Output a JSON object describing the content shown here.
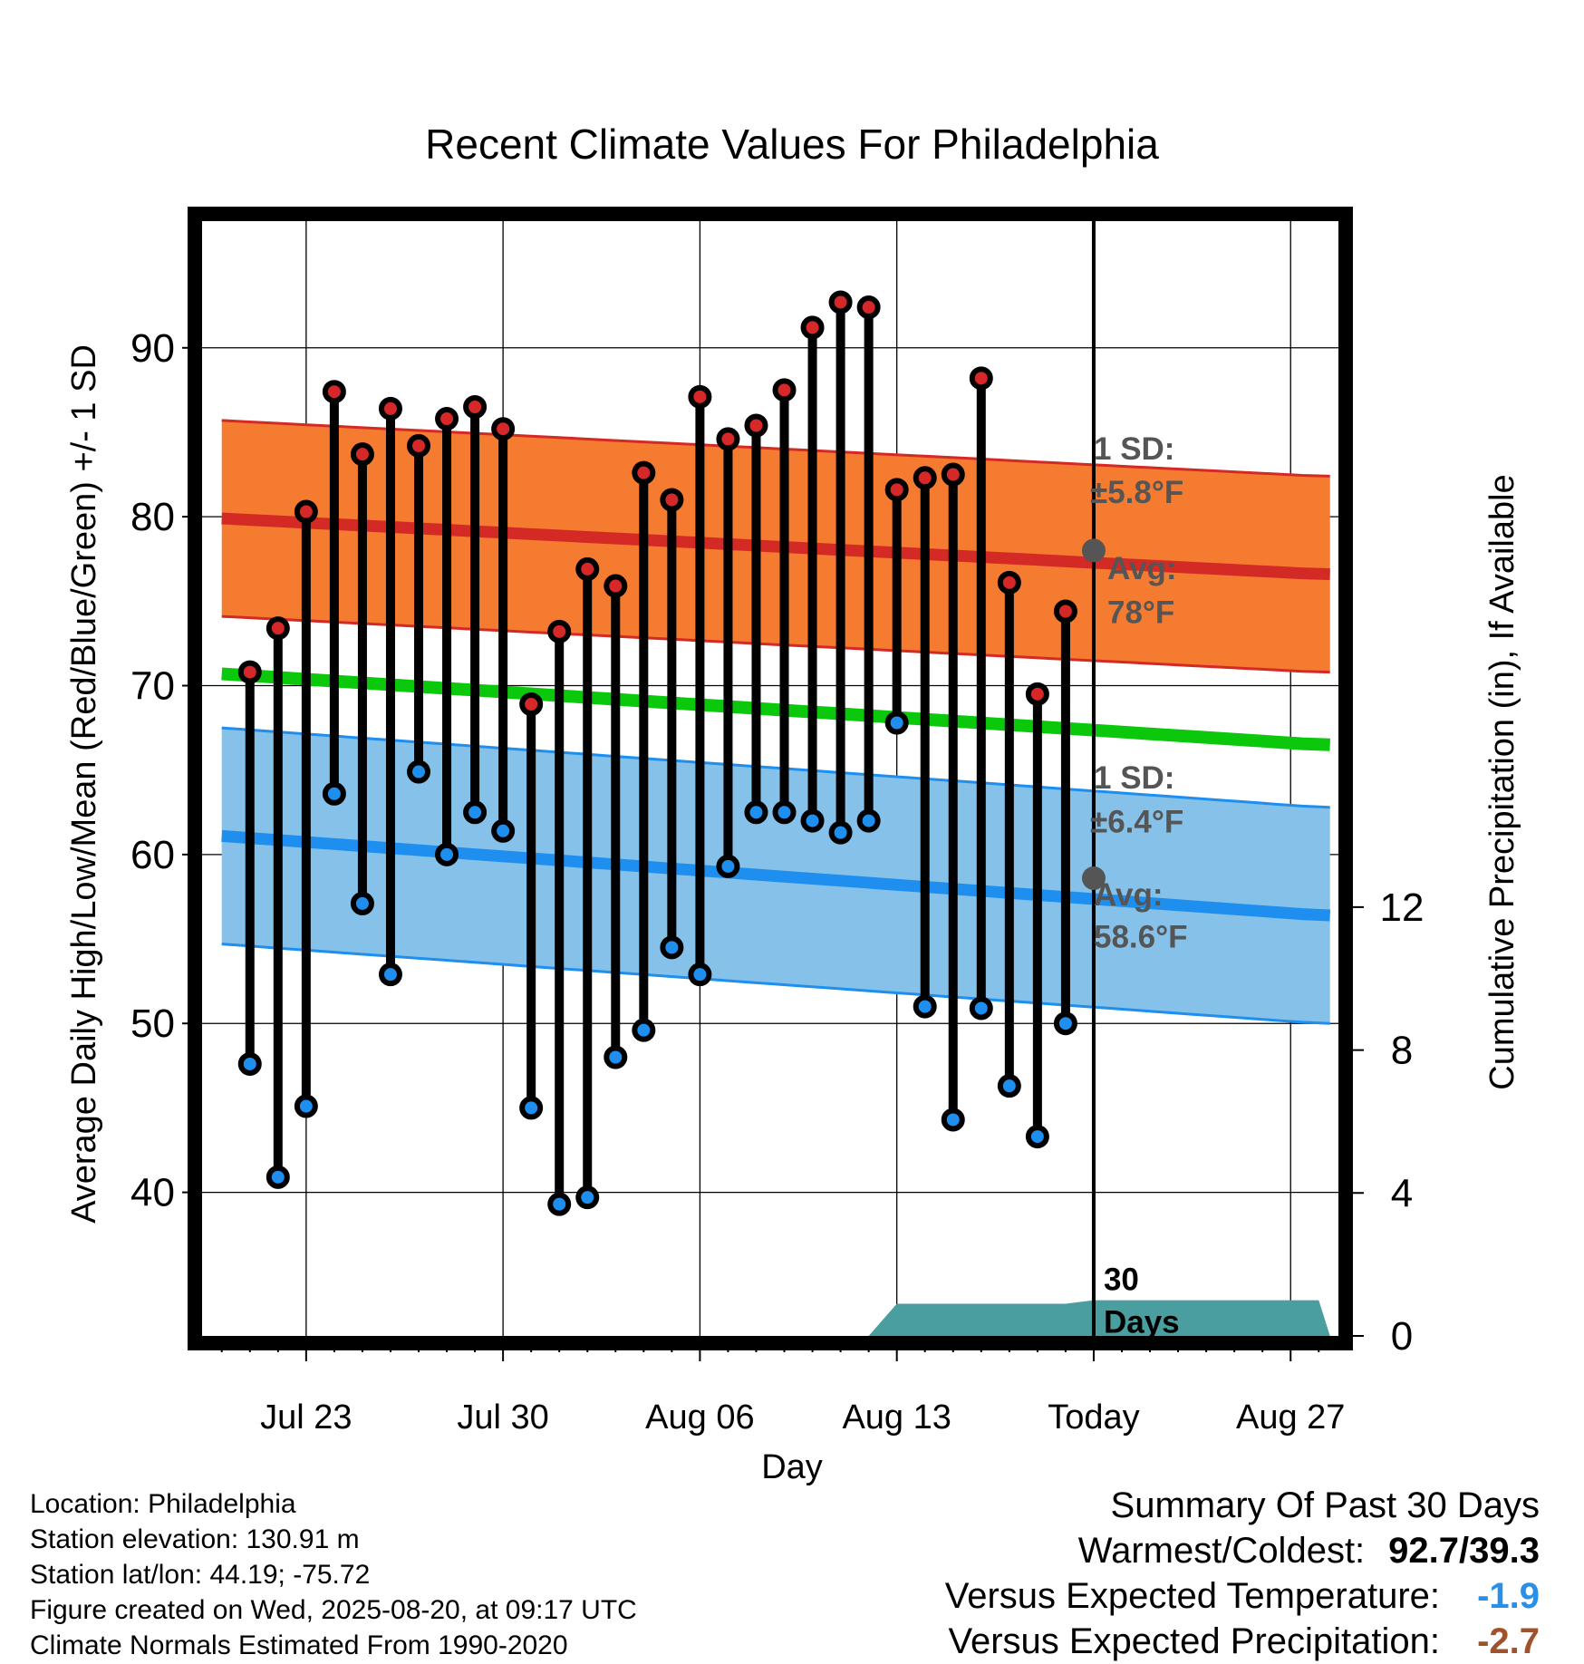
{
  "chart_data": {
    "type": "line",
    "title": "Recent Climate Values For Philadelphia",
    "xlabel": "Day",
    "ylabel": "Average Daily High/Low/Mean (Red/Blue/Green) +/- 1 SD",
    "y2label": "Cumulative Precipitation (in), If Available",
    "x_ticks": [
      "Jul 23",
      "Jul 30",
      "Aug 06",
      "Aug 13",
      "Today",
      "Aug 27"
    ],
    "x_tick_days": [
      3,
      10,
      17,
      24,
      31,
      38
    ],
    "xlim_days": [
      -0.7,
      39.7
    ],
    "x_day0": "2025-07-20",
    "ylim": [
      31.5,
      97.5
    ],
    "y_ticks": [
      40,
      50,
      60,
      70,
      80,
      90
    ],
    "y2_ticks": [
      0,
      4,
      8,
      12
    ],
    "y2lim": [
      0,
      31.2
    ],
    "grid": true,
    "today_day": 31,
    "today_label": "30 Days",
    "observed": {
      "days": [
        1,
        2,
        3,
        4,
        5,
        6,
        7,
        8,
        9,
        10,
        11,
        12,
        13,
        14,
        15,
        16,
        17,
        18,
        19,
        20,
        21,
        22,
        23,
        24,
        25,
        26,
        27,
        28,
        29,
        30
      ],
      "highs": [
        70.8,
        73.4,
        80.3,
        87.4,
        83.7,
        86.4,
        84.2,
        85.8,
        86.5,
        85.2,
        68.9,
        73.2,
        76.9,
        75.9,
        82.6,
        81.0,
        87.1,
        84.6,
        85.4,
        87.5,
        91.2,
        92.7,
        92.4,
        81.6,
        82.3,
        82.5,
        88.2,
        76.1,
        69.5,
        74.4
      ],
      "lows": [
        47.6,
        40.9,
        45.1,
        63.6,
        57.1,
        52.9,
        64.9,
        60.0,
        62.5,
        61.4,
        45.0,
        39.3,
        39.7,
        48.0,
        49.6,
        54.5,
        52.9,
        59.3,
        62.5,
        62.5,
        62.0,
        61.3,
        62.0,
        67.8,
        51.0,
        44.3,
        50.9,
        46.3,
        43.3,
        50.0
      ]
    },
    "normals": {
      "days": [
        0,
        39
      ],
      "high_avg": [
        79.9,
        76.6
      ],
      "high_sd": 5.8,
      "mean_avg": [
        70.7,
        66.5
      ],
      "low_avg": [
        61.1,
        56.4
      ],
      "low_sd": 6.4
    },
    "precipitation": {
      "days": [
        23,
        24,
        30,
        31,
        39
      ],
      "values": [
        0,
        0.9,
        0.9,
        1.0,
        1.0
      ]
    },
    "annotations": {
      "high_sd_title": "1 SD:",
      "high_sd_value": "±5.8°F",
      "high_avg_title": "Avg:",
      "high_avg_value": "78°F",
      "low_sd_title": "1 SD:",
      "low_sd_value": "±6.4°F",
      "low_avg_title": "Avg:",
      "low_avg_value": "58.6°F",
      "today_high_avg": 78.0,
      "today_low_avg": 58.6
    },
    "colors": {
      "high_band": "#f47b2f",
      "high_line": "#d42a26",
      "mean_line": "#0cc80c",
      "low_band": "#85c1e8",
      "low_line": "#1e8fef",
      "high_marker": "#d62828",
      "low_marker": "#1e8fef",
      "precip": "#4a9ea0",
      "annotation": "#555555"
    }
  },
  "footer": {
    "location": "Location: Philadelphia",
    "elevation": "Station elevation: 130.91 m",
    "latlon": "Station lat/lon: 44.19; -75.72",
    "created": "Figure created on Wed, 2025-08-20, at 09:17 UTC",
    "normals": "Climate Normals Estimated From 1990-2020"
  },
  "summary": {
    "title": "Summary Of Past 30 Days",
    "warmest_label": "Warmest/Coldest:",
    "warmest_value": "92.7/39.3",
    "temp_label": "Versus Expected Temperature:",
    "temp_value": "-1.9",
    "precip_label": "Versus Expected Precipitation:",
    "precip_value": "-2.7"
  }
}
